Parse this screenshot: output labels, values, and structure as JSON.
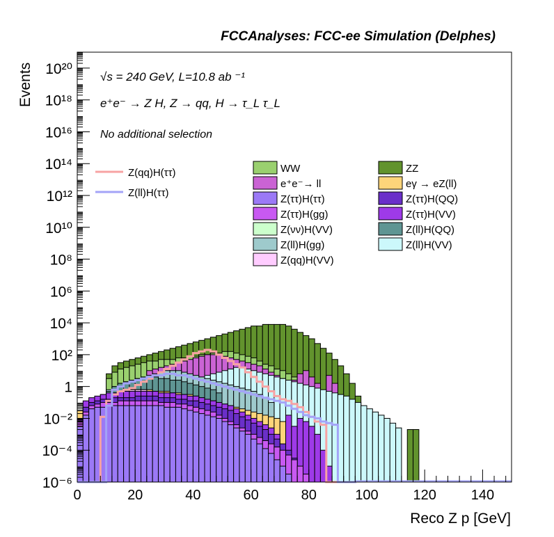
{
  "header": {
    "title": "FCCAnalyses: FCC-ee Simulation (Delphes)"
  },
  "annotations": {
    "line1": "√s = 240 GeV, L=10.8 ab ⁻¹",
    "line2": "e⁺e⁻ → Z H, Z → qq, H → τ_L τ_L",
    "line3": "No additional selection"
  },
  "chart_data": {
    "type": "area",
    "title": "FCCAnalyses: FCC-ee Simulation (Delphes)",
    "xlabel": "Reco Z p [GeV]",
    "ylabel": "Events",
    "xlim": [
      0,
      150
    ],
    "ylim": [
      1e-06,
      1e+21
    ],
    "yscale": "log",
    "x_ticks": [
      0,
      20,
      40,
      60,
      80,
      100,
      120,
      140
    ],
    "y_ticks": [
      {
        "value": 1e-06,
        "label": "10⁻⁶"
      },
      {
        "value": 0.0001,
        "label": "10⁻⁴"
      },
      {
        "value": 0.01,
        "label": "10⁻²"
      },
      {
        "value": 1,
        "label": "1"
      },
      {
        "value": 100.0,
        "label": "10²"
      },
      {
        "value": 10000.0,
        "label": "10⁴"
      },
      {
        "value": 1000000.0,
        "label": "10⁶"
      },
      {
        "value": 100000000.0,
        "label": "10⁸"
      },
      {
        "value": 10000000000.0,
        "label": "10¹⁰"
      },
      {
        "value": 1000000000000.0,
        "label": "10¹²"
      },
      {
        "value": 100000000000000.0,
        "label": "10¹⁴"
      },
      {
        "value": 1e+16,
        "label": "10¹⁶"
      },
      {
        "value": 1e+18,
        "label": "10¹⁸"
      },
      {
        "value": 1e+20,
        "label": "10²⁰"
      }
    ],
    "bin_width": 2,
    "legend_placement": "top",
    "stack_layers": [
      {
        "name": "ZZ",
        "color": "#62932d",
        "start": 4,
        "log10_values": [
          -0.5,
          0.8,
          1.3,
          1.5,
          1.6,
          1.7,
          1.8,
          1.9,
          2.0,
          2.1,
          2.2,
          2.3,
          2.4,
          2.5,
          2.6,
          2.7,
          2.8,
          2.9,
          3.0,
          3.1,
          3.2,
          3.3,
          3.4,
          3.5,
          3.6,
          3.7,
          3.8,
          3.8,
          3.9,
          3.9,
          3.9,
          3.9,
          3.8,
          3.6,
          3.4,
          3.2,
          3.0,
          2.7,
          2.4,
          2.1,
          1.7,
          1.3,
          0.8,
          0.2,
          -0.6,
          -2.0,
          -5.0,
          -8.0,
          -2.7,
          -8.0,
          -8.0,
          -8.0,
          -8.0,
          -2.7,
          -2.7
        ]
      },
      {
        "name": "WW",
        "color": "#9ad06f",
        "start": 5,
        "log10_values": [
          0.5,
          0.9,
          1.1,
          1.2,
          1.3,
          1.4,
          1.5,
          1.6,
          1.6,
          1.7,
          1.7,
          1.7,
          1.8,
          1.8,
          1.9,
          1.9,
          2.0,
          2.0,
          2.1,
          2.1,
          2.2,
          2.2,
          2.1,
          2.0,
          1.9,
          1.8,
          1.6,
          1.4,
          1.3,
          1.1,
          1.0,
          0.8,
          0.6,
          0.4,
          0.1,
          -0.3
        ]
      },
      {
        "name": "e⁺e⁻→ ll",
        "color": "#ca63d4",
        "start": 12,
        "log10_values": [
          1.0,
          1.1,
          1.2,
          1.3,
          1.4,
          1.5,
          1.6,
          1.7,
          1.8,
          1.9,
          2.0,
          2.0,
          2.0,
          1.9,
          1.8,
          1.7,
          1.6,
          1.5,
          1.4,
          1.3,
          1.1,
          0.9,
          0.7,
          0.5,
          0.3,
          0.4,
          0.8,
          1.0,
          0.6,
          0.2,
          -0.5,
          0.7,
          0.2
        ]
      },
      {
        "name": "Z(ll)H(VV)",
        "color": "#ccf8fb",
        "start": 20,
        "log10_values": [
          0.5,
          0.6,
          0.7,
          0.8,
          0.9,
          1.0,
          1.1,
          1.2,
          1.2,
          1.1,
          1.0,
          0.9,
          0.8,
          0.7,
          0.6,
          0.5,
          0.4,
          0.3,
          0.2,
          0.1,
          0.0,
          -0.1,
          -0.2,
          -0.3,
          -0.4,
          -0.5,
          -0.6,
          -0.8,
          -1.0,
          -1.2,
          -1.4,
          -1.6,
          -1.8,
          -2.0,
          -2.3,
          -2.6
        ]
      },
      {
        "name": "Z(ll)H(gg)",
        "color": "#9ecacc",
        "start": 4,
        "log10_values": [
          -0.6,
          -0.2,
          0.0,
          0.2,
          0.3,
          0.4,
          0.5,
          0.6,
          0.7,
          0.8,
          0.9,
          1.0,
          1.0,
          1.0,
          0.9,
          0.8,
          0.7,
          0.6,
          0.5,
          0.4,
          0.3,
          0.2,
          0.1,
          0.0,
          -0.1,
          -0.2,
          -0.3,
          -0.5,
          -0.7,
          -1.0
        ]
      },
      {
        "name": "Z(ll)H(QQ)",
        "color": "#5f9593",
        "start": 5,
        "log10_values": [
          -0.3,
          0.0,
          0.2,
          0.3,
          0.4,
          0.5,
          0.6,
          0.6,
          0.6,
          0.5,
          0.5,
          0.4,
          0.4,
          0.3,
          0.2,
          0.1,
          0.0,
          -0.1,
          -0.2,
          -0.4
        ]
      },
      {
        "name": "eγ → eZ(ll)",
        "color": "#fdd57a",
        "start": 0,
        "log10_values": [
          -1.5,
          -1.2,
          -1.0,
          -0.8,
          -0.6,
          -0.5,
          -0.4,
          -0.3,
          -0.3,
          -0.2,
          -0.2,
          -0.2,
          -0.2,
          -0.3,
          -0.3,
          -0.3,
          -0.4,
          -0.4,
          -0.5,
          -0.5,
          -0.6,
          -0.7,
          -0.8,
          -0.9,
          -1.0,
          -1.1,
          -1.2,
          -1.3,
          -1.4,
          -1.5,
          -1.6,
          -1.7,
          -1.8,
          -1.9,
          -2.0,
          -2.2,
          -2.5
        ]
      },
      {
        "name": "Z(qq)H(VV)",
        "color": "#ffccff",
        "start": 4,
        "log10_values": [
          -0.6,
          -0.5,
          -0.4,
          -0.3,
          -0.3,
          -0.2,
          -0.2,
          -0.2,
          -0.3,
          -0.3,
          -0.4,
          -0.4,
          -0.5,
          -0.6,
          -0.7,
          -0.8,
          -0.9,
          -1.0,
          -1.1,
          -1.2
        ]
      },
      {
        "name": "Z(νν)H(VV)",
        "color": "#ccffcc",
        "start": 4,
        "log10_values": [
          -0.8,
          -0.7,
          -0.6,
          -0.5,
          -0.5,
          -0.4,
          -0.4,
          -0.4,
          -0.5,
          -0.5,
          -0.6,
          -0.6,
          -0.7,
          -0.8,
          -0.9,
          -1.0,
          -1.1,
          -1.2,
          -1.3,
          -1.4
        ]
      },
      {
        "name": "Z(ττ)H(VV)",
        "color": "#9e3ae8",
        "start": 0,
        "log10_values": [
          -2.0,
          -0.9,
          -0.7,
          -0.6,
          -0.5,
          -0.4,
          -0.4,
          -0.3,
          -0.3,
          -0.3,
          -0.3,
          -0.3,
          -0.3,
          -0.3,
          -0.4,
          -0.4,
          -0.4,
          -0.5,
          -0.5,
          -0.6,
          -0.6,
          -0.7,
          -0.8,
          -0.9,
          -1.0,
          -1.1,
          -1.2,
          -1.4,
          -1.6,
          -1.8,
          -2.0,
          -2.2,
          -2.4,
          -2.6,
          -3.0,
          -5.0,
          -1.8,
          -2.5,
          -2.0,
          -2.2,
          -2.5,
          -3.0,
          -4.0,
          -5.0,
          -6.0,
          -7.0,
          -8.0,
          -8.0
        ]
      },
      {
        "name": "Z(ττ)H(QQ)",
        "color": "#6a2fc9",
        "start": 0,
        "log10_values": [
          -2.2,
          -1.3,
          -1.0,
          -0.9,
          -0.8,
          -0.8,
          -0.7,
          -0.7,
          -0.7,
          -0.7,
          -0.6,
          -0.6,
          -0.6,
          -0.6,
          -0.7,
          -0.7,
          -0.7,
          -0.8,
          -0.8,
          -0.9,
          -0.9,
          -1.0,
          -1.1,
          -1.2,
          -1.3,
          -1.4,
          -1.5,
          -1.7,
          -1.9,
          -2.1,
          -2.3,
          -2.5,
          -2.7,
          -3.0,
          -3.3,
          -3.6,
          -4.0,
          -4.5
        ]
      },
      {
        "name": "Z(ττ)H(gg)",
        "color": "#c859f2",
        "start": 0,
        "log10_values": [
          -2.2,
          -1.6,
          -1.2,
          -1.1,
          -1.0,
          -1.0,
          -1.0,
          -0.9,
          -0.9,
          -0.9,
          -0.9,
          -0.9,
          -0.9,
          -0.9,
          -1.0,
          -1.0,
          -1.0,
          -1.1,
          -1.1,
          -1.2,
          -1.3,
          -1.4,
          -1.5,
          -1.6,
          -1.8,
          -2.0,
          -2.2,
          -2.4,
          -2.6,
          -2.8,
          -3.0,
          -3.2,
          -3.4,
          -3.6,
          -3.8,
          -4.0,
          -4.3,
          -4.6,
          -5.0,
          -5.5,
          -6.0,
          -6.5
        ]
      },
      {
        "name": "Z(ττ)H(ττ)",
        "color": "#9b79f6",
        "start": 0,
        "log10_values": [
          -2.5,
          -1.8,
          -1.4,
          -1.3,
          -1.3,
          -1.2,
          -1.2,
          -1.2,
          -1.2,
          -1.2,
          -1.2,
          -1.2,
          -1.2,
          -1.2,
          -1.2,
          -1.3,
          -1.3,
          -1.3,
          -1.4,
          -1.5,
          -1.6,
          -1.7,
          -1.8,
          -1.9,
          -2.0,
          -2.2,
          -2.4,
          -2.6,
          -2.8,
          -3.0,
          -3.3,
          -3.6,
          -3.9,
          -4.2,
          -4.6,
          -5.0,
          -5.5,
          -6.0,
          -7.0
        ]
      }
    ],
    "line_series": [
      {
        "name": "Z(qq)H(ττ)",
        "color": "#f7a3a3",
        "start": 0,
        "log10_values": [
          -8,
          -8,
          -8,
          -8,
          -1.9,
          -0.9,
          -0.5,
          -0.3,
          -0.2,
          -0.1,
          0.1,
          0.3,
          0.5,
          0.7,
          0.9,
          1.1,
          1.3,
          1.5,
          1.7,
          1.9,
          2.1,
          2.2,
          2.3,
          2.2,
          2.0,
          1.8,
          1.6,
          1.4,
          1.2,
          0.9,
          0.6,
          0.3,
          0.0,
          -0.3,
          -0.6,
          -0.8,
          -0.9,
          -1.1,
          -1.3,
          -1.6,
          -1.9,
          -2.2,
          -2.4,
          -8,
          -8,
          -8,
          -8,
          -8
        ]
      },
      {
        "name": "Z(ll)H(ττ)",
        "color": "#a3a3f7",
        "start": 0,
        "log10_values": [
          -8,
          -8,
          -8,
          -8,
          -8,
          -1.2,
          -0.2,
          0.0,
          0.2,
          0.3,
          0.4,
          0.5,
          0.6,
          0.7,
          0.7,
          0.8,
          0.8,
          0.7,
          0.7,
          0.6,
          0.5,
          0.4,
          0.3,
          0.2,
          0.1,
          0.0,
          -0.1,
          -0.2,
          -0.3,
          -0.4,
          -0.5,
          -0.6,
          -0.7,
          -0.8,
          -0.9,
          -1.0,
          -1.2,
          -1.4,
          -1.6,
          -1.8,
          -1.9,
          -2.0,
          -2.2,
          -2.3,
          -2.4,
          -8,
          -8,
          -8
        ]
      }
    ],
    "legend_left": [
      "Z(qq)H(ττ)",
      "Z(ll)H(ττ)"
    ],
    "legend_col1": [
      {
        "label": "WW",
        "color": "#9ad06f"
      },
      {
        "label": "e⁺e⁻→ ll",
        "color": "#ca63d4"
      },
      {
        "label": "Z(ττ)H(ττ)",
        "color": "#9b79f6"
      },
      {
        "label": "Z(ττ)H(gg)",
        "color": "#c859f2"
      },
      {
        "label": "Z(νν)H(VV)",
        "color": "#ccffcc"
      },
      {
        "label": "Z(ll)H(gg)",
        "color": "#9ecacc"
      },
      {
        "label": "Z(qq)H(VV)",
        "color": "#ffccff"
      }
    ],
    "legend_col2": [
      {
        "label": "ZZ",
        "color": "#62932d"
      },
      {
        "label": "eγ → eZ(ll)",
        "color": "#fdd57a"
      },
      {
        "label": "Z(ττ)H(QQ)",
        "color": "#6a2fc9"
      },
      {
        "label": "Z(ττ)H(VV)",
        "color": "#9e3ae8"
      },
      {
        "label": "Z(ll)H(QQ)",
        "color": "#5f9593"
      },
      {
        "label": "Z(ll)H(VV)",
        "color": "#ccf8fb"
      }
    ]
  }
}
